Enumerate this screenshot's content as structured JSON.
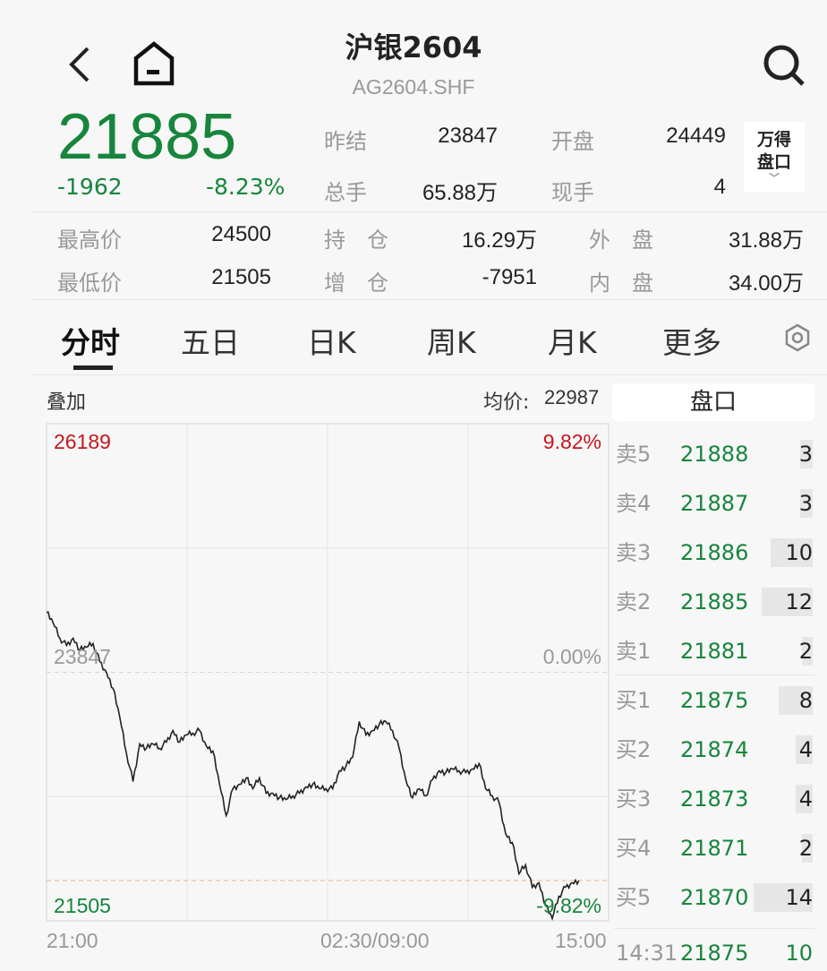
{
  "header": {
    "title": "沪银2604",
    "code": "AG2604.SHF",
    "back_icon": "chevron-left-icon",
    "home_icon": "home-icon",
    "search_icon": "search-icon"
  },
  "quote": {
    "last": "21885",
    "change": "-1962",
    "change_pct": "-8.23%",
    "stats": [
      {
        "label": "昨结",
        "value": "23847"
      },
      {
        "label": "开盘",
        "value": "24449"
      },
      {
        "label": "总手",
        "value": "65.88万"
      },
      {
        "label": "现手",
        "value": "4"
      },
      {
        "label": "最高价",
        "value": "24500"
      },
      {
        "label": "持　仓",
        "value": "16.29万"
      },
      {
        "label": "外　盘",
        "value": "31.88万"
      },
      {
        "label": "最低价",
        "value": "21505"
      },
      {
        "label": "增　仓",
        "value": "-7951"
      },
      {
        "label": "内　盘",
        "value": "34.00万"
      }
    ],
    "wind_button": {
      "line1": "万得",
      "line2": "盘口"
    }
  },
  "tabs": [
    {
      "label": "分时",
      "active": true
    },
    {
      "label": "五日"
    },
    {
      "label": "日K"
    },
    {
      "label": "周K"
    },
    {
      "label": "月K"
    },
    {
      "label": "更多"
    }
  ],
  "settings_icon": "hexagon-gear-icon",
  "chart_toolbar": {
    "overlay": "叠加",
    "avg_label": "均价:",
    "avg_value": "22987"
  },
  "colors": {
    "up": "#c4161c",
    "down": "#17853c",
    "line": "#222222",
    "current_price_line": "#f0b27a"
  },
  "chart_data": {
    "type": "line",
    "y_labels": {
      "top": "26189",
      "mid": "23847",
      "bottom": "21505",
      "top_pct": "9.82%",
      "mid_pct": "0.00%",
      "bottom_pct": "-9.82%"
    },
    "ylim": [
      21505,
      26189
    ],
    "prev_settle": 23847,
    "current_price": 21885,
    "x_ticks": [
      "21:00",
      "02:30/09:00",
      "15:00"
    ],
    "grid": true,
    "values": [
      24412,
      24311,
      24168,
      24100,
      24168,
      24058,
      24083,
      24117,
      23948,
      23847,
      23695,
      23425,
      23087,
      22817,
      23172,
      23130,
      23172,
      23130,
      23189,
      23298,
      23189,
      23256,
      23273,
      23298,
      23155,
      23104,
      22792,
      22497,
      22750,
      22792,
      22851,
      22750,
      22851,
      22708,
      22708,
      22665,
      22648,
      22682,
      22708,
      22767,
      22792,
      22750,
      22750,
      22750,
      22919,
      22961,
      23045,
      23383,
      23256,
      23298,
      23357,
      23383,
      23298,
      23130,
      22834,
      22665,
      22750,
      22682,
      22834,
      22919,
      22902,
      22936,
      22919,
      22902,
      22936,
      22986,
      22750,
      22682,
      22623,
      22328,
      22243,
      21948,
      22032,
      21821,
      21864,
      21653,
      21526,
      21737,
      21821,
      21864,
      21885
    ]
  },
  "order_book": {
    "title": "盘口",
    "asks": [
      {
        "name": "卖5",
        "price": "21888",
        "vol": "3"
      },
      {
        "name": "卖4",
        "price": "21887",
        "vol": "3"
      },
      {
        "name": "卖3",
        "price": "21886",
        "vol": "10"
      },
      {
        "name": "卖2",
        "price": "21885",
        "vol": "12"
      },
      {
        "name": "卖1",
        "price": "21881",
        "vol": "2"
      }
    ],
    "bids": [
      {
        "name": "买1",
        "price": "21875",
        "vol": "8"
      },
      {
        "name": "买2",
        "price": "21874",
        "vol": "4"
      },
      {
        "name": "买3",
        "price": "21873",
        "vol": "4"
      },
      {
        "name": "买4",
        "price": "21871",
        "vol": "2"
      },
      {
        "name": "买5",
        "price": "21870",
        "vol": "14"
      }
    ],
    "last_trade": {
      "time": "14:31",
      "price": "21875",
      "vol": "10"
    }
  }
}
